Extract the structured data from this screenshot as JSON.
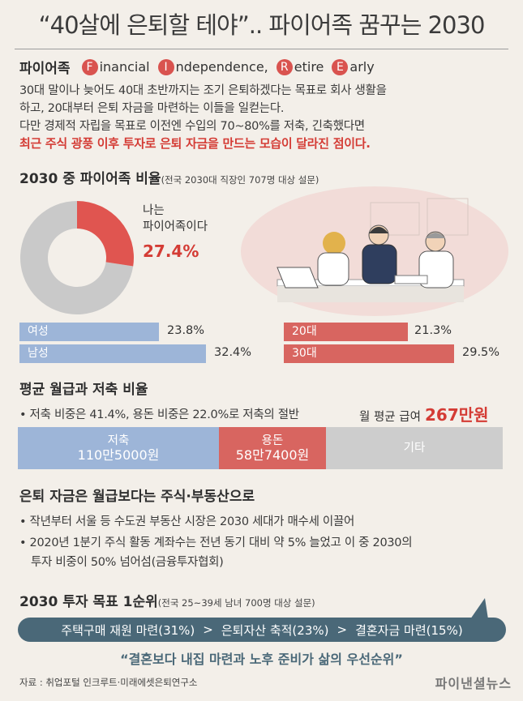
{
  "title": "“40살에 은퇴할 테야”.. 파이어족 꿈꾸는 2030",
  "fire": {
    "label": "파이어족",
    "words": [
      {
        "letter": "F",
        "rest": "inancial"
      },
      {
        "letter": "I",
        "rest": "ndependence,"
      },
      {
        "letter": "R",
        "rest": "etire"
      },
      {
        "letter": "E",
        "rest": "arly"
      }
    ]
  },
  "description": [
    "30대 말이나 늦어도 40대 초반까지는 조기 은퇴하겠다는 목표로 회사 생활을",
    "하고, 20대부터 은퇴 자금을 마련하는 이들을 일컫는다.",
    "다만 경제적 자립을 목표로 이전엔 수입의 70~80%를 저축, 긴축했다면"
  ],
  "description_highlight": "최근 주식 광풍 이후 투자로 은퇴 자금을 만드는 모습이 달라진 점이다.",
  "section1": {
    "title": "2030 중 파이어족 비율",
    "subtitle": "(전국 2030대 직장인 707명 대상 설문)"
  },
  "donut": {
    "label_line1": "나는",
    "label_line2": "파이어족이다",
    "value_text": "27.4%",
    "value": 27.4,
    "color_primary": "#e05550",
    "color_rest": "#c9c9c9"
  },
  "chart_data": [
    {
      "type": "pie",
      "categories": [
        "나는 파이어족이다"
      ],
      "values": [
        27.4
      ],
      "title": "2030 중 파이어족 비율"
    },
    {
      "type": "bar",
      "categories": [
        "여성",
        "남성"
      ],
      "values": [
        23.8,
        32.4
      ]
    },
    {
      "type": "bar",
      "categories": [
        "20대",
        "30대"
      ],
      "values": [
        21.3,
        29.5
      ]
    }
  ],
  "gender_bars": [
    {
      "label": "여성",
      "value": 23.8,
      "value_text": "23.8%"
    },
    {
      "label": "남성",
      "value": 32.4,
      "value_text": "32.4%"
    }
  ],
  "age_bars": [
    {
      "label": "20대",
      "value": 21.3,
      "value_text": "21.3%"
    },
    {
      "label": "30대",
      "value": 29.5,
      "value_text": "29.5%"
    }
  ],
  "colors": {
    "blue": "#9db5d8",
    "red": "#d86560",
    "gray": "#cdcdcd",
    "goal": "#4a6878"
  },
  "section2": {
    "title": "평균 월급과 저축 비율",
    "bullet": "• 저축 비중은 41.4%, 용돈 비중은 22.0%로 저축의 절반",
    "salary_label": "월 평균 급여",
    "salary_value": "267만원",
    "segments": [
      {
        "label": "저축",
        "amount": "110만5000원",
        "share": 41.4
      },
      {
        "label": "용돈",
        "amount": "58만7400원",
        "share": 22.0
      },
      {
        "label": "기타",
        "amount": "",
        "share": 36.6
      }
    ]
  },
  "section3": {
    "title": "은퇴 자금은 월급보다는 주식·부동산으로",
    "bullets": [
      "• 작년부터 서울 등 수도권 부동산 시장은 2030 세대가 매수세 이끌어",
      "• 2020년 1분기 주식 활동 계좌수는 전년 동기 대비 약 5% 늘었고 이 중 2030의"
    ],
    "bullet_cont": "투자 비중이 50% 넘어섬(금융투자협회)"
  },
  "section4": {
    "title": "2030 투자 목표 1순위",
    "subtitle": "(전국 25~39세 남녀 700명 대상 설문)",
    "goals": [
      "주택구매 재원 마련(31%)",
      "은퇴자산 축적(23%)",
      "결혼자금 마련(15%)"
    ],
    "arrow": ">"
  },
  "quote": "“결혼보다 내집 마련과 노후 준비가 삶의 우선순위”",
  "source": "자료 : 취업포털 인크루트·미래에셋은퇴연구소",
  "logo": "파이낸셜뉴스"
}
